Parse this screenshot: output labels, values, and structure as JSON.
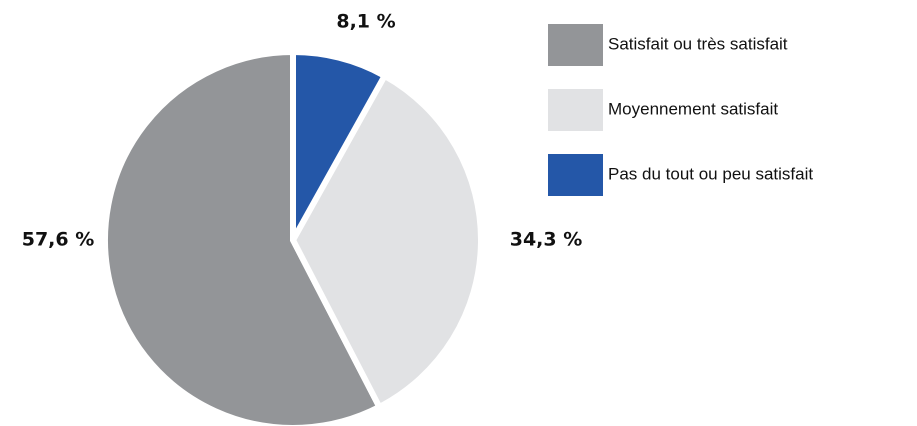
{
  "chart_data": {
    "type": "pie",
    "categories": [
      "Satisfait ou très satisfait",
      "Moyennement satisfait",
      "Pas du tout ou peu satisfait"
    ],
    "values": [
      57.6,
      34.3,
      8.1
    ],
    "value_labels": [
      "57,6 %",
      "34,3 %",
      "8,1 %"
    ],
    "colors": [
      "#939598",
      "#e1e2e4",
      "#2457a8"
    ],
    "legend": "right"
  }
}
